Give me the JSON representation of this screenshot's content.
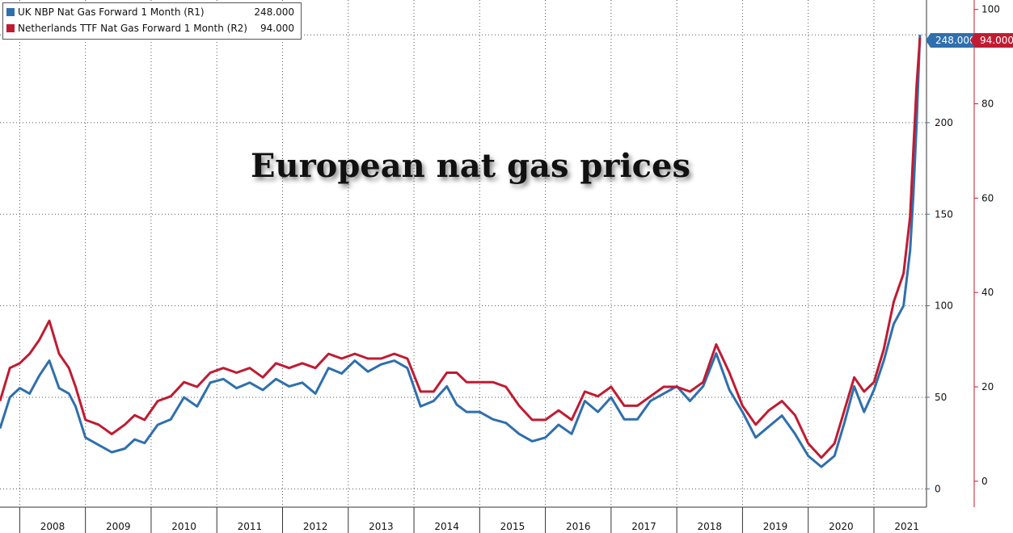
{
  "chart_data": {
    "type": "line",
    "title": "European nat gas prices",
    "xlabel": "",
    "ylabel": "",
    "x_tick_labels": [
      "2008",
      "2009",
      "2010",
      "2011",
      "2012",
      "2013",
      "2014",
      "2015",
      "2016",
      "2017",
      "2018",
      "2019",
      "2020",
      "2021"
    ],
    "x_range": [
      2007.7,
      2021.8
    ],
    "y_left_ticks": [
      0,
      50,
      100,
      150,
      200
    ],
    "y_left_range": [
      -10,
      267
    ],
    "y_right_ticks": [
      0,
      20,
      40,
      60,
      80,
      100
    ],
    "y_right_range": [
      -5.5,
      102
    ],
    "grid": true,
    "legend_position": "top-left",
    "series": [
      {
        "name": "UK NBP Nat Gas Forward 1 Month (R1)",
        "axis": "left",
        "color": "#2f6fad",
        "last_value": "248.000",
        "x": [
          2007.7,
          2007.85,
          2008.0,
          2008.15,
          2008.3,
          2008.45,
          2008.6,
          2008.75,
          2008.85,
          2009.0,
          2009.2,
          2009.4,
          2009.6,
          2009.75,
          2009.9,
          2010.1,
          2010.3,
          2010.5,
          2010.7,
          2010.9,
          2011.1,
          2011.3,
          2011.5,
          2011.7,
          2011.9,
          2012.1,
          2012.3,
          2012.5,
          2012.7,
          2012.9,
          2013.1,
          2013.3,
          2013.5,
          2013.7,
          2013.9,
          2014.1,
          2014.3,
          2014.5,
          2014.65,
          2014.8,
          2015.0,
          2015.2,
          2015.4,
          2015.6,
          2015.8,
          2016.0,
          2016.2,
          2016.4,
          2016.6,
          2016.8,
          2017.0,
          2017.2,
          2017.4,
          2017.6,
          2017.8,
          2018.0,
          2018.2,
          2018.4,
          2018.6,
          2018.8,
          2019.0,
          2019.2,
          2019.4,
          2019.6,
          2019.8,
          2020.0,
          2020.2,
          2020.4,
          2020.55,
          2020.7,
          2020.85,
          2021.0,
          2021.15,
          2021.3,
          2021.45,
          2021.55,
          2021.6,
          2021.65,
          2021.7
        ],
        "values": [
          33,
          50,
          55,
          52,
          62,
          70,
          55,
          52,
          45,
          28,
          24,
          20,
          22,
          27,
          25,
          35,
          38,
          50,
          45,
          58,
          60,
          55,
          58,
          54,
          60,
          56,
          58,
          52,
          66,
          63,
          70,
          64,
          68,
          70,
          66,
          45,
          48,
          56,
          46,
          42,
          42,
          38,
          36,
          30,
          26,
          28,
          35,
          30,
          48,
          42,
          50,
          38,
          38,
          48,
          52,
          56,
          48,
          56,
          74,
          54,
          42,
          28,
          34,
          40,
          30,
          18,
          12,
          18,
          36,
          56,
          42,
          54,
          70,
          90,
          100,
          130,
          160,
          200,
          248
        ]
      },
      {
        "name": "Netherlands TTF Nat Gas Forward 1 Month (R2)",
        "axis": "right",
        "color": "#c01b32",
        "last_value": "94.000",
        "x": [
          2007.7,
          2007.85,
          2008.0,
          2008.15,
          2008.3,
          2008.45,
          2008.6,
          2008.75,
          2008.85,
          2009.0,
          2009.2,
          2009.4,
          2009.6,
          2009.75,
          2009.9,
          2010.1,
          2010.3,
          2010.5,
          2010.7,
          2010.9,
          2011.1,
          2011.3,
          2011.5,
          2011.7,
          2011.9,
          2012.1,
          2012.3,
          2012.5,
          2012.7,
          2012.9,
          2013.1,
          2013.3,
          2013.5,
          2013.7,
          2013.9,
          2014.1,
          2014.3,
          2014.5,
          2014.65,
          2014.8,
          2015.0,
          2015.2,
          2015.4,
          2015.6,
          2015.8,
          2016.0,
          2016.2,
          2016.4,
          2016.6,
          2016.8,
          2017.0,
          2017.2,
          2017.4,
          2017.6,
          2017.8,
          2018.0,
          2018.2,
          2018.4,
          2018.6,
          2018.8,
          2019.0,
          2019.2,
          2019.4,
          2019.6,
          2019.8,
          2020.0,
          2020.2,
          2020.4,
          2020.55,
          2020.7,
          2020.85,
          2021.0,
          2021.15,
          2021.3,
          2021.45,
          2021.55,
          2021.6,
          2021.65,
          2021.7
        ],
        "values": [
          17,
          24,
          25,
          27,
          30,
          34,
          27,
          24,
          20,
          13,
          12,
          10,
          12,
          14,
          13,
          17,
          18,
          21,
          20,
          23,
          24,
          23,
          24,
          22,
          25,
          24,
          25,
          24,
          27,
          26,
          27,
          26,
          26,
          27,
          26,
          19,
          19,
          23,
          23,
          21,
          21,
          21,
          20,
          16,
          13,
          13,
          15,
          13,
          19,
          18,
          20,
          16,
          16,
          18,
          20,
          20,
          19,
          21,
          29,
          23,
          16,
          12,
          15,
          17,
          14,
          8,
          5,
          8,
          15,
          22,
          19,
          21,
          28,
          38,
          44,
          56,
          70,
          84,
          94
        ]
      }
    ]
  },
  "legend": {
    "items": [
      {
        "label": "UK NBP Nat Gas Forward 1 Month (R1)",
        "value": "248.000",
        "color": "#2f6fad"
      },
      {
        "label": "Netherlands TTF Nat Gas Forward 1 Month (R2)",
        "value": "94.000",
        "color": "#c01b32"
      }
    ]
  },
  "last_value_tags": {
    "r1": "248.000",
    "r2": "94.000"
  }
}
